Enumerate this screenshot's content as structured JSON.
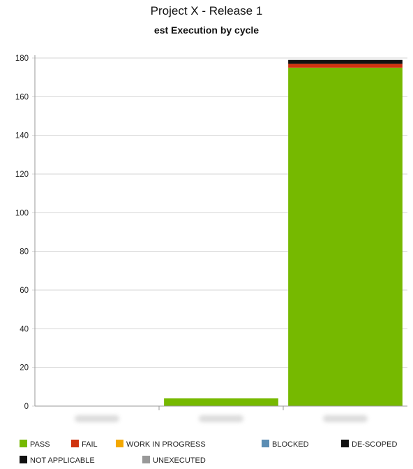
{
  "chart_data": {
    "type": "bar",
    "stacked": true,
    "title": "Project X - Release 1",
    "subtitle": "est Execution by cycle",
    "xlabel": "",
    "ylabel": "",
    "ylim": [
      0,
      180
    ],
    "yticks": [
      0,
      20,
      40,
      60,
      80,
      100,
      120,
      140,
      160,
      180
    ],
    "categories": [
      "",
      "",
      ""
    ],
    "grid": true,
    "legend_position": "bottom",
    "series": [
      {
        "name": "PASS",
        "color": "#76b900",
        "values": [
          0,
          4,
          175
        ]
      },
      {
        "name": "FAIL",
        "color": "#d0330f",
        "values": [
          0,
          0,
          2
        ]
      },
      {
        "name": "WORK IN PROGRESS",
        "color": "#f4a800",
        "values": [
          0,
          0,
          0
        ]
      },
      {
        "name": "BLOCKED",
        "color": "#5b8db3",
        "values": [
          0,
          0,
          0
        ]
      },
      {
        "name": "DE-SCOPED",
        "color": "#111111",
        "values": [
          0,
          0,
          2
        ]
      },
      {
        "name": "NOT APPLICABLE",
        "color": "#111111",
        "values": [
          0,
          0,
          0
        ]
      },
      {
        "name": "UNEXECUTED",
        "color": "#999999",
        "values": [
          0,
          0,
          0
        ]
      }
    ]
  }
}
